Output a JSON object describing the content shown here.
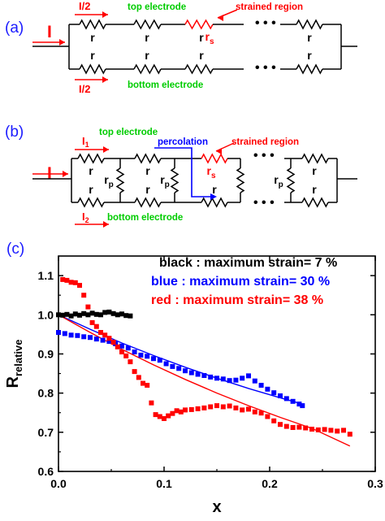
{
  "panel_a": {
    "label": "(a)",
    "current_in": "I",
    "current_top": "I/2",
    "current_bottom": "I/2",
    "top_electrode": "top electrode",
    "bottom_electrode": "bottom electrode",
    "strained_region": "strained region",
    "resistor": "r",
    "strained_resistor": "r",
    "strained_sub": "s",
    "ellipsis": "• • •"
  },
  "panel_b": {
    "label": "(b)",
    "current_in": "I",
    "current_top": "I",
    "current_top_sub": "1",
    "current_bottom": "I",
    "current_bottom_sub": "2",
    "top_electrode": "top electrode",
    "bottom_electrode": "bottom electrode",
    "percolation": "percolation",
    "strained_region": "strained region",
    "resistor": "r",
    "rp": "r",
    "rp_sub": "p",
    "strained_resistor": "r",
    "strained_sub": "s",
    "ellipsis": "• • •"
  },
  "panel_c": {
    "label": "(c)",
    "legend": [
      {
        "text": "black : maximum strain= 7 %",
        "color": "#000000"
      },
      {
        "text": "blue : maximum strain= 30 %",
        "color": "#0000ff"
      },
      {
        "text": "red : maximum strain= 38 %",
        "color": "#ff0000"
      }
    ]
  },
  "colors": {
    "red": "#ff0000",
    "blue": "#0000ff",
    "green": "#00cc00",
    "black": "#000000",
    "label_blue": "#1a1aff"
  },
  "chart_data": {
    "type": "scatter",
    "xlabel": "x",
    "ylabel": "R",
    "ylabel_sub": "relative",
    "xlim": [
      0.0,
      0.3
    ],
    "ylim": [
      0.6,
      1.15
    ],
    "xticks": [
      0.0,
      0.1,
      0.2,
      0.3
    ],
    "xtick_labels": [
      "0.0",
      "0.1",
      "0.2",
      "0.3"
    ],
    "yticks": [
      0.6,
      0.7,
      0.8,
      0.9,
      1.0,
      1.1
    ],
    "ytick_labels": [
      "0.6",
      "0.7",
      "0.8",
      "0.9",
      "1.0",
      "1.1"
    ],
    "series": [
      {
        "name": "black : maximum strain= 7 %",
        "color": "#000000",
        "points": [
          [
            0.0,
            1.0
          ],
          [
            0.004,
            0.999
          ],
          [
            0.008,
            1.001
          ],
          [
            0.012,
            0.997
          ],
          [
            0.016,
            1.002
          ],
          [
            0.02,
            0.999
          ],
          [
            0.024,
            1.003
          ],
          [
            0.028,
            1.0
          ],
          [
            0.032,
            1.004
          ],
          [
            0.036,
            1.001
          ],
          [
            0.04,
            1.0
          ],
          [
            0.044,
            1.006
          ],
          [
            0.048,
            1.007
          ],
          [
            0.052,
            1.003
          ],
          [
            0.056,
            1.0
          ],
          [
            0.06,
            1.002
          ],
          [
            0.064,
            0.998
          ],
          [
            0.068,
            0.997
          ]
        ]
      },
      {
        "name": "blue : maximum strain= 30 %",
        "color": "#0000ff",
        "points": [
          [
            0.0,
            0.955
          ],
          [
            0.006,
            0.952
          ],
          [
            0.012,
            0.948
          ],
          [
            0.018,
            0.947
          ],
          [
            0.024,
            0.944
          ],
          [
            0.03,
            0.942
          ],
          [
            0.036,
            0.938
          ],
          [
            0.042,
            0.935
          ],
          [
            0.048,
            0.932
          ],
          [
            0.054,
            0.926
          ],
          [
            0.06,
            0.92
          ],
          [
            0.066,
            0.915
          ],
          [
            0.072,
            0.905
          ],
          [
            0.078,
            0.897
          ],
          [
            0.084,
            0.894
          ],
          [
            0.09,
            0.888
          ],
          [
            0.096,
            0.884
          ],
          [
            0.102,
            0.875
          ],
          [
            0.108,
            0.868
          ],
          [
            0.114,
            0.863
          ],
          [
            0.12,
            0.857
          ],
          [
            0.126,
            0.852
          ],
          [
            0.132,
            0.848
          ],
          [
            0.138,
            0.845
          ],
          [
            0.144,
            0.841
          ],
          [
            0.15,
            0.838
          ],
          [
            0.156,
            0.836
          ],
          [
            0.162,
            0.832
          ],
          [
            0.168,
            0.833
          ],
          [
            0.174,
            0.838
          ],
          [
            0.18,
            0.844
          ],
          [
            0.186,
            0.831
          ],
          [
            0.192,
            0.82
          ],
          [
            0.198,
            0.81
          ],
          [
            0.204,
            0.801
          ],
          [
            0.21,
            0.793
          ],
          [
            0.216,
            0.786
          ],
          [
            0.222,
            0.779
          ],
          [
            0.228,
            0.772
          ],
          [
            0.231,
            0.768
          ]
        ]
      },
      {
        "name": "red : maximum strain= 38 %",
        "color": "#ff0000",
        "points": [
          [
            0.004,
            1.09
          ],
          [
            0.008,
            1.088
          ],
          [
            0.012,
            1.083
          ],
          [
            0.016,
            1.082
          ],
          [
            0.02,
            1.075
          ],
          [
            0.024,
            1.05
          ],
          [
            0.028,
            1.02
          ],
          [
            0.032,
            0.98
          ],
          [
            0.036,
            0.97
          ],
          [
            0.04,
            0.955
          ],
          [
            0.044,
            0.948
          ],
          [
            0.048,
            0.94
          ],
          [
            0.052,
            0.93
          ],
          [
            0.056,
            0.918
          ],
          [
            0.06,
            0.905
          ],
          [
            0.064,
            0.895
          ],
          [
            0.068,
            0.88
          ],
          [
            0.072,
            0.855
          ],
          [
            0.076,
            0.84
          ],
          [
            0.08,
            0.825
          ],
          [
            0.084,
            0.82
          ],
          [
            0.088,
            0.775
          ],
          [
            0.092,
            0.745
          ],
          [
            0.096,
            0.74
          ],
          [
            0.1,
            0.735
          ],
          [
            0.104,
            0.742
          ],
          [
            0.108,
            0.748
          ],
          [
            0.112,
            0.755
          ],
          [
            0.116,
            0.752
          ],
          [
            0.12,
            0.757
          ],
          [
            0.126,
            0.758
          ],
          [
            0.132,
            0.76
          ],
          [
            0.138,
            0.762
          ],
          [
            0.144,
            0.765
          ],
          [
            0.15,
            0.768
          ],
          [
            0.156,
            0.765
          ],
          [
            0.162,
            0.767
          ],
          [
            0.168,
            0.762
          ],
          [
            0.174,
            0.757
          ],
          [
            0.18,
            0.759
          ],
          [
            0.186,
            0.752
          ],
          [
            0.192,
            0.749
          ],
          [
            0.198,
            0.74
          ],
          [
            0.204,
            0.729
          ],
          [
            0.21,
            0.72
          ],
          [
            0.216,
            0.715
          ],
          [
            0.222,
            0.712
          ],
          [
            0.228,
            0.713
          ],
          [
            0.234,
            0.711
          ],
          [
            0.24,
            0.708
          ],
          [
            0.246,
            0.706
          ],
          [
            0.252,
            0.707
          ],
          [
            0.258,
            0.705
          ],
          [
            0.264,
            0.703
          ],
          [
            0.27,
            0.705
          ],
          [
            0.276,
            0.695
          ]
        ]
      }
    ],
    "fits": [
      {
        "color": "#0000ff",
        "points": [
          [
            0.0,
            1.0
          ],
          [
            0.03,
            0.963
          ],
          [
            0.06,
            0.928
          ],
          [
            0.09,
            0.896
          ],
          [
            0.12,
            0.866
          ],
          [
            0.15,
            0.838
          ],
          [
            0.18,
            0.812
          ],
          [
            0.21,
            0.788
          ],
          [
            0.231,
            0.772
          ]
        ]
      },
      {
        "color": "#ff0000",
        "points": [
          [
            0.0,
            1.0
          ],
          [
            0.03,
            0.955
          ],
          [
            0.06,
            0.912
          ],
          [
            0.09,
            0.872
          ],
          [
            0.12,
            0.835
          ],
          [
            0.15,
            0.8
          ],
          [
            0.18,
            0.768
          ],
          [
            0.21,
            0.738
          ],
          [
            0.24,
            0.71
          ],
          [
            0.276,
            0.665
          ]
        ]
      }
    ]
  }
}
